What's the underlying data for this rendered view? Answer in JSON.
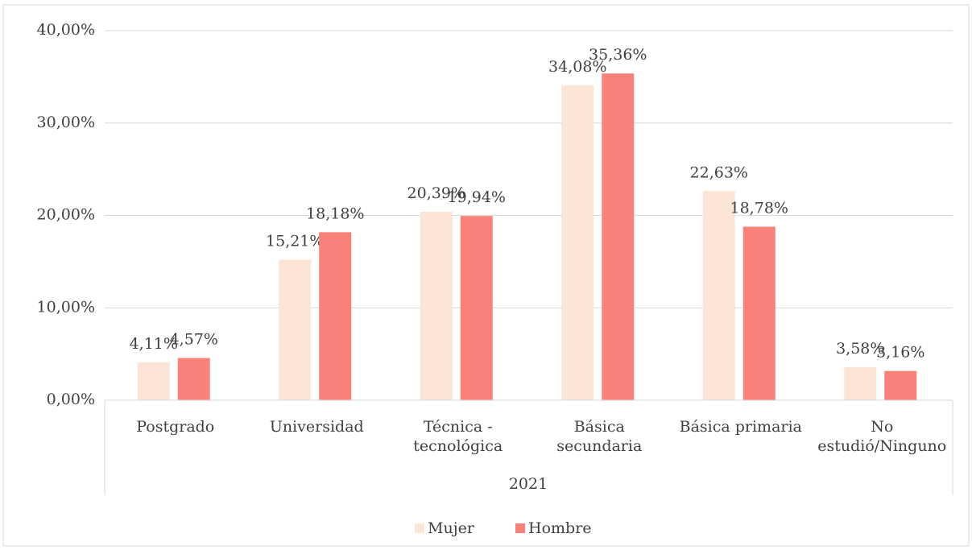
{
  "chart_data": {
    "type": "bar",
    "group_label": "2021",
    "categories": [
      "Postgrado",
      "Universidad",
      "Técnica - tecnológica",
      "Básica secundaria",
      "Básica primaria",
      "No estudió/Ninguno"
    ],
    "series": [
      {
        "name": "Mujer",
        "color": "#fbe5d6",
        "values": [
          4.11,
          15.21,
          20.39,
          34.08,
          22.63,
          3.58
        ],
        "value_labels": [
          "4,11%",
          "15,21%",
          "20,39%",
          "34,08%",
          "22,63%",
          "3,58%"
        ]
      },
      {
        "name": "Hombre",
        "color": "#f8827a",
        "values": [
          4.57,
          18.18,
          19.94,
          35.36,
          18.78,
          3.16
        ],
        "value_labels": [
          "4,57%",
          "18,18%",
          "19,94%",
          "35,36%",
          "18,78%",
          "3,16%"
        ]
      }
    ],
    "ylim": [
      0,
      40
    ],
    "yticks": [
      {
        "value": 0,
        "label": "0,00%"
      },
      {
        "value": 10,
        "label": "10,00%"
      },
      {
        "value": 20,
        "label": "20,00%"
      },
      {
        "value": 30,
        "label": "30,00%"
      },
      {
        "value": 40,
        "label": "40,00%"
      }
    ],
    "grid": true,
    "legend": "bottom"
  }
}
